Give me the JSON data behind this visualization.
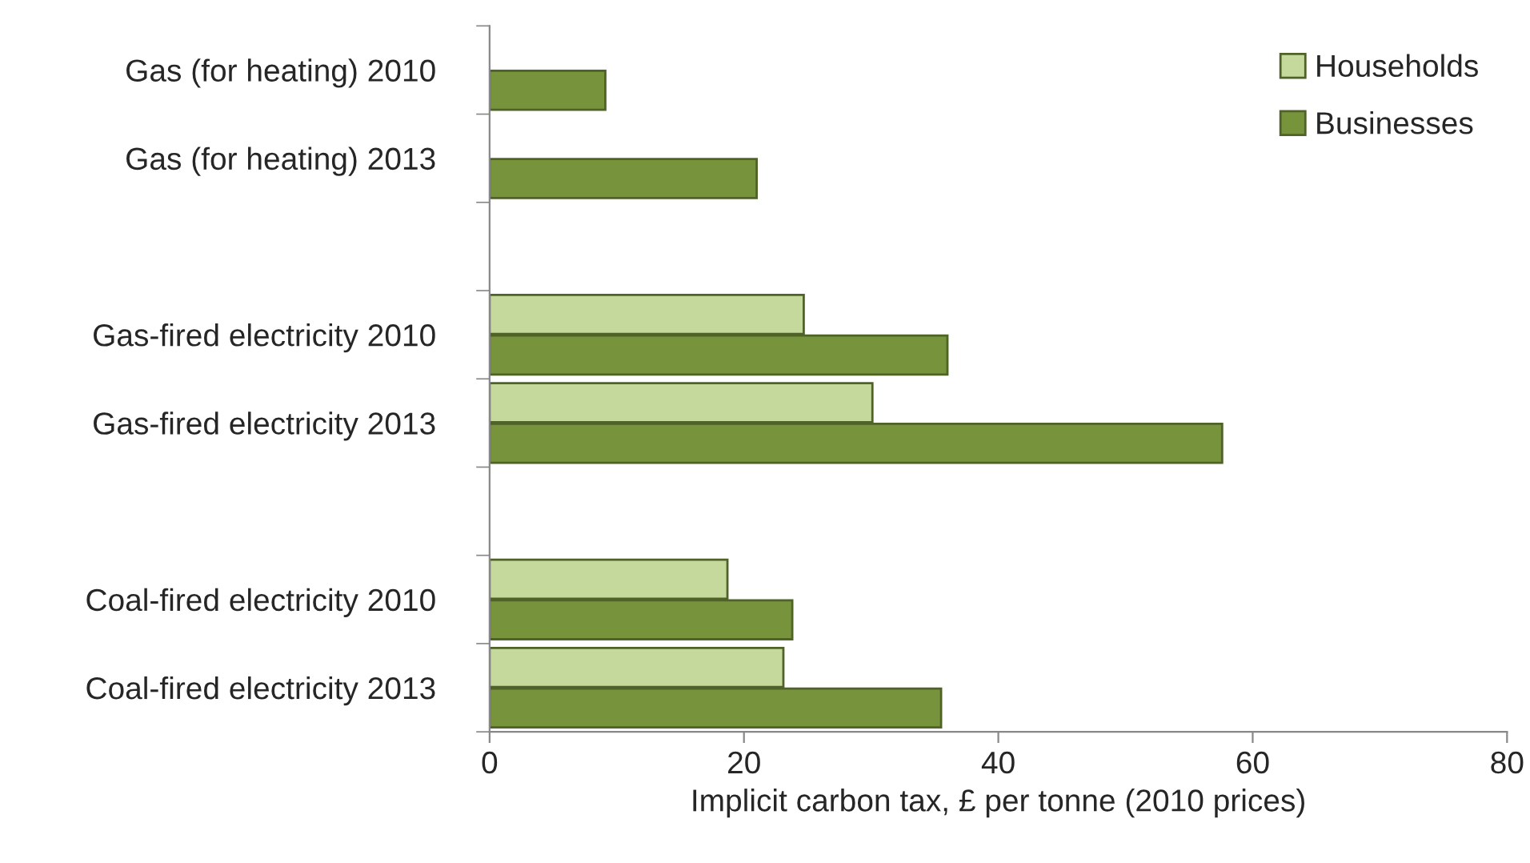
{
  "chart_data": {
    "type": "bar",
    "orientation": "horizontal",
    "xlabel": "Implicit carbon tax, £ per tonne (2010 prices)",
    "categories": [
      "Gas (for heating) 2010",
      "Gas (for heating) 2013",
      null,
      "Gas-fired electricity 2010",
      "Gas-fired electricity 2013",
      null,
      "Coal-fired electricity 2010",
      "Coal-fired electricity 2013"
    ],
    "series": [
      {
        "name": "Households",
        "color": "#c4d99b",
        "values": [
          null,
          null,
          null,
          24.7,
          30.1,
          null,
          18.7,
          23.1
        ]
      },
      {
        "name": "Businesses",
        "color": "#77933c",
        "values": [
          9.1,
          21.0,
          null,
          36.0,
          57.6,
          null,
          23.8,
          35.5
        ]
      }
    ],
    "xlim": [
      0,
      80
    ],
    "xticks": [
      0,
      20,
      40,
      60,
      80
    ],
    "grid": false,
    "legend": "top right"
  }
}
